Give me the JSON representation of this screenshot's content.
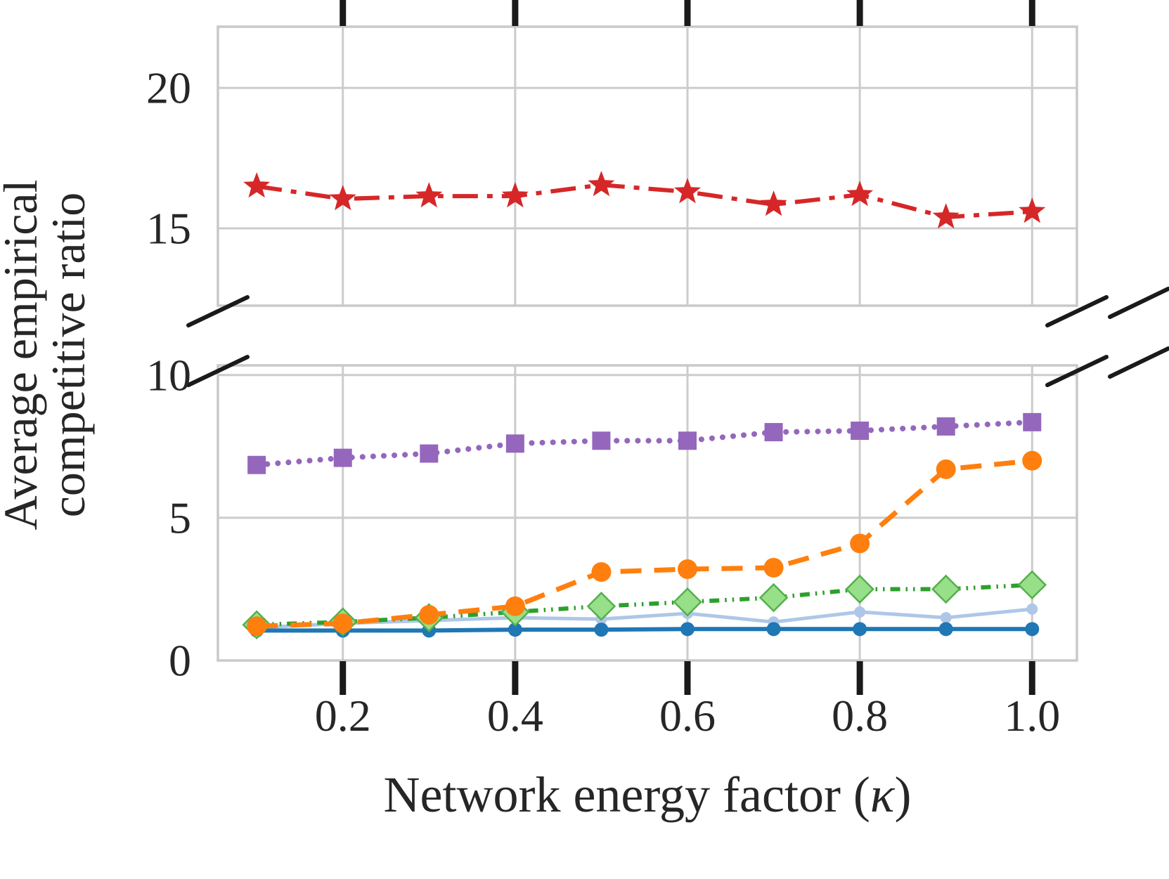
{
  "chart_data": {
    "type": "line",
    "title": "",
    "xlabel": "Network energy factor (κ)",
    "ylabel_lines": [
      "Average empirical",
      "competitive ratio"
    ],
    "broken_axis": true,
    "grid": true,
    "legend": "none",
    "x": [
      0.1,
      0.2,
      0.3,
      0.4,
      0.5,
      0.6,
      0.7,
      0.8,
      0.9,
      1.0
    ],
    "xlim": [
      0.055,
      1.052
    ],
    "x_ticks": [
      0.2,
      0.4,
      0.6,
      0.8,
      1.0
    ],
    "x_tick_labels": [
      "0.2",
      "0.4",
      "0.6",
      "0.8",
      "1.0"
    ],
    "panels": {
      "top": {
        "ylim": [
          12.25,
          22.18
        ],
        "y_ticks": [
          15,
          20
        ]
      },
      "bottom": {
        "ylim": [
          0,
          10.34
        ],
        "y_ticks": [
          0,
          5,
          10
        ]
      }
    },
    "series": [
      {
        "name": "light-blue-solid-circles",
        "panel": "bottom",
        "color": "#aec7e8",
        "marker": "circle",
        "marker_size": 8,
        "line_style": "solid",
        "line_width": 5,
        "values": [
          1.15,
          1.3,
          1.4,
          1.5,
          1.45,
          1.65,
          1.35,
          1.7,
          1.5,
          1.8
        ]
      },
      {
        "name": "dark-blue-solid-circles",
        "panel": "bottom",
        "color": "#1f77b4",
        "marker": "circle",
        "marker_size": 10,
        "line_style": "solid",
        "line_width": 6,
        "values": [
          1.05,
          1.05,
          1.05,
          1.08,
          1.08,
          1.1,
          1.1,
          1.1,
          1.1,
          1.1
        ]
      },
      {
        "name": "green-dashdotdot-diamonds",
        "panel": "bottom",
        "color": "#2ca02c",
        "marker": "diamond",
        "marker_size": 19,
        "marker_fill": "#98df8a",
        "marker_stroke": "#54b04a",
        "line_style": "densedashdotdot",
        "line_width": 6,
        "values": [
          1.25,
          1.35,
          1.5,
          1.7,
          1.9,
          2.05,
          2.2,
          2.5,
          2.5,
          2.65
        ]
      },
      {
        "name": "orange-dashed-circles",
        "panel": "bottom",
        "color": "#ff7f0e",
        "marker": "circle",
        "marker_size": 14,
        "line_style": "dashed",
        "line_width": 7,
        "values": [
          1.2,
          1.3,
          1.6,
          1.9,
          3.1,
          3.2,
          3.25,
          4.1,
          6.7,
          7.0
        ]
      },
      {
        "name": "purple-dotted-squares",
        "panel": "bottom",
        "color": "#9467bd",
        "marker": "square",
        "marker_size": 13,
        "line_style": "dotted",
        "line_width": 8,
        "values": [
          6.85,
          7.1,
          7.25,
          7.6,
          7.7,
          7.7,
          8.0,
          8.05,
          8.2,
          8.35
        ]
      },
      {
        "name": "red-dashdot-stars",
        "panel": "top",
        "color": "#d62728",
        "marker": "star",
        "marker_size": 20,
        "line_style": "dashdot",
        "line_width": 6,
        "values": [
          16.5,
          16.05,
          16.15,
          16.15,
          16.55,
          16.3,
          15.85,
          16.2,
          15.4,
          15.6
        ]
      }
    ]
  },
  "colors": {
    "grid": "#cccccc",
    "spine": "#c9c9c9",
    "tick_mark": "#1a1a1a",
    "text": "#262626",
    "background": "#ffffff"
  }
}
